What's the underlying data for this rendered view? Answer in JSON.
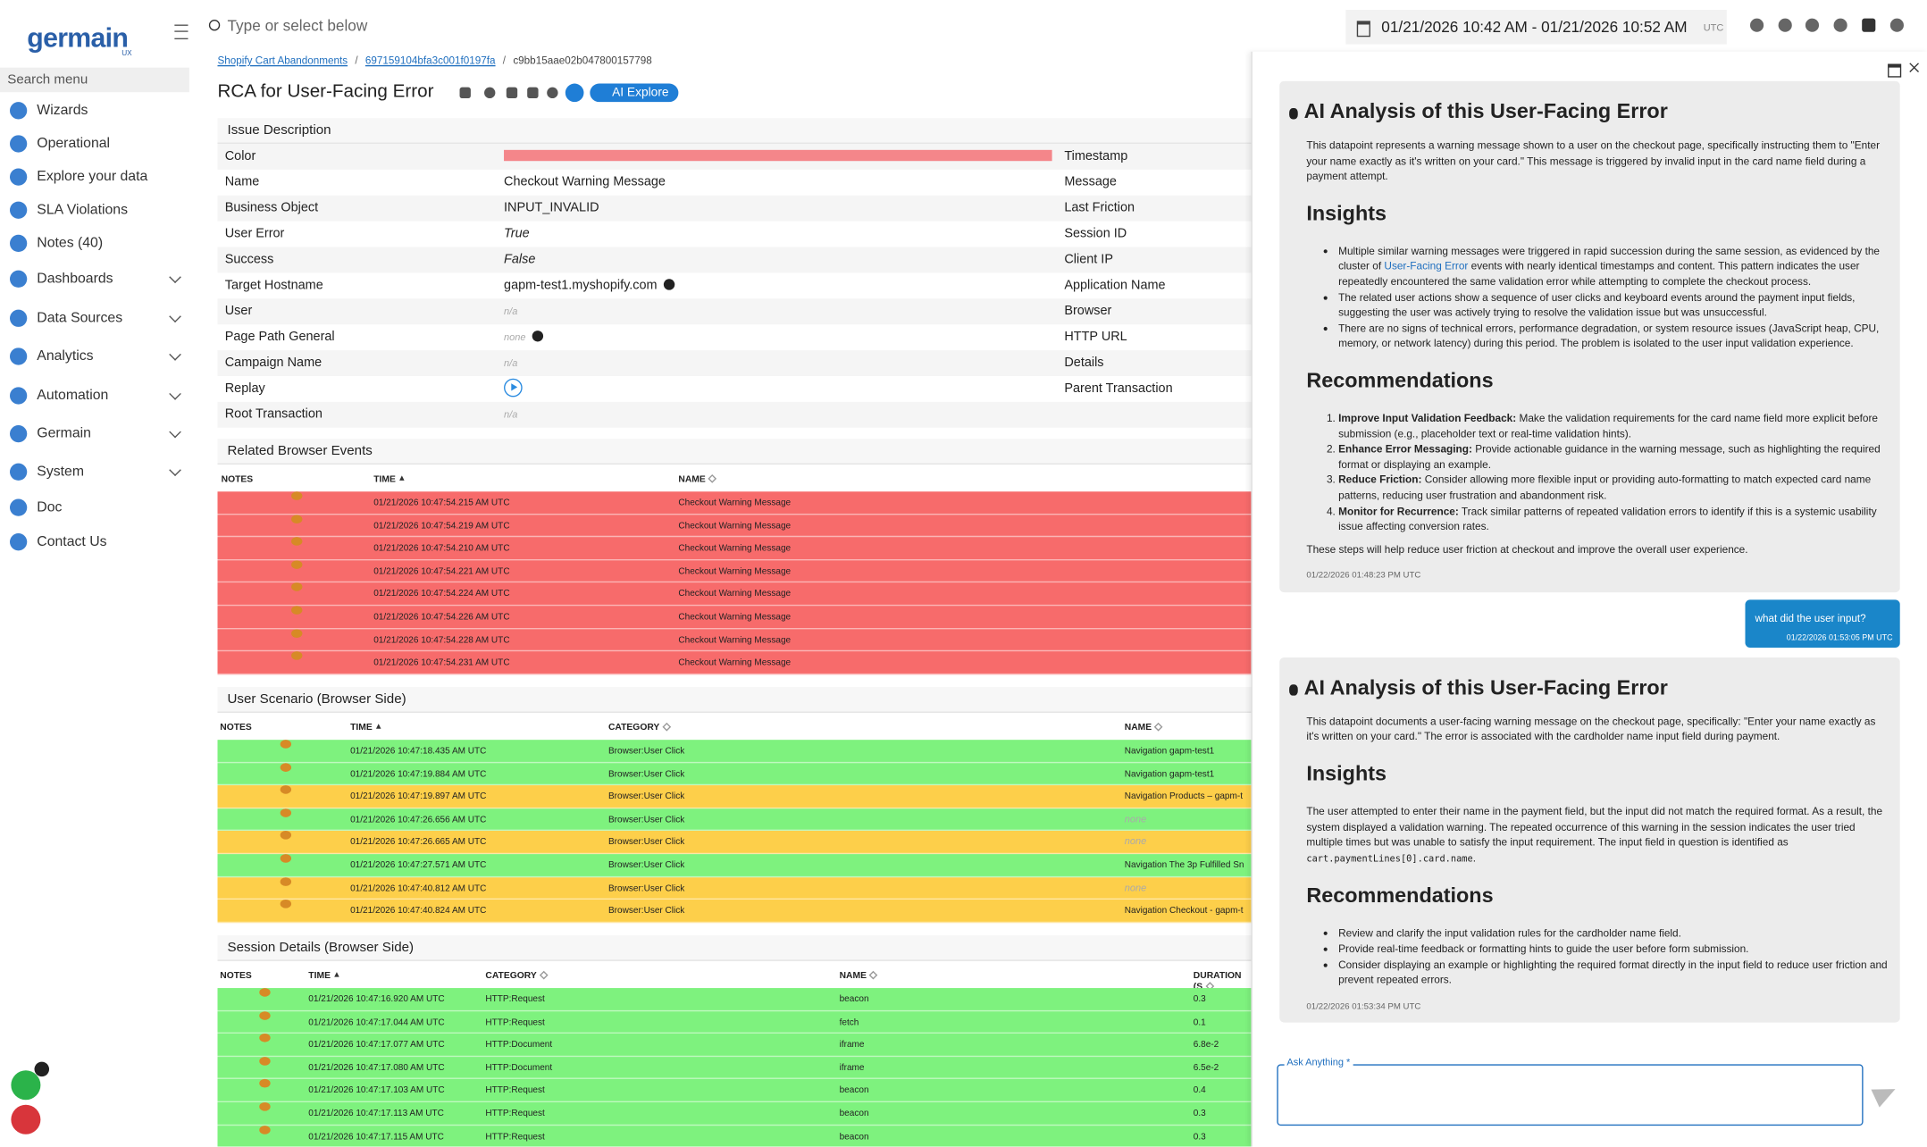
{
  "sidebar": {
    "logo": "germain",
    "logo_sub": "UX",
    "search": "Search menu",
    "items": [
      {
        "label": "Wizards",
        "expandable": false
      },
      {
        "label": "Operational",
        "expandable": false
      },
      {
        "label": "Explore your data",
        "expandable": false
      },
      {
        "label": "SLA Violations",
        "expandable": false
      },
      {
        "label": "Notes (40)",
        "expandable": false
      },
      {
        "label": "Dashboards",
        "expandable": true
      },
      {
        "label": "Data Sources",
        "expandable": true
      },
      {
        "label": "Analytics",
        "expandable": true
      },
      {
        "label": "Automation",
        "expandable": true
      },
      {
        "label": "Germain",
        "expandable": true
      },
      {
        "label": "System",
        "expandable": true
      },
      {
        "label": "Doc",
        "expandable": false
      },
      {
        "label": "Contact Us",
        "expandable": false
      }
    ]
  },
  "topbar": {
    "search_placeholder": "Type or select below",
    "date_range": "01/21/2026 10:42 AM - 01/21/2026 10:52 AM",
    "timezone": "UTC"
  },
  "breadcrumb": {
    "items": [
      "Shopify Cart Abandonments",
      "697159104bfa3c001f0197fa",
      "c9bb15aae02b047800157798"
    ],
    "separator": "/"
  },
  "header": {
    "title": "RCA for User-Facing Error",
    "ai_button": "AI Explore"
  },
  "issue": {
    "title": "Issue Description",
    "left": [
      {
        "label": "Color",
        "color": "#f4868a"
      },
      {
        "label": "Name",
        "value": "Checkout Warning Message"
      },
      {
        "label": "Business Object",
        "value": "INPUT_INVALID"
      },
      {
        "label": "User Error",
        "value": "True",
        "style": "italic"
      },
      {
        "label": "Success",
        "value": "False",
        "style": "italic"
      },
      {
        "label": "Target Hostname",
        "value": "gapm-test1.myshopify.com",
        "info": true
      },
      {
        "label": "User",
        "value": "n/a",
        "style": "muted"
      },
      {
        "label": "Page Path General",
        "value": "none",
        "style": "muted",
        "info": true
      },
      {
        "label": "Campaign Name",
        "value": "n/a",
        "style": "muted"
      },
      {
        "label": "Replay",
        "icon": "play"
      },
      {
        "label": "Root Transaction",
        "value": "n/a",
        "style": "muted"
      }
    ],
    "right": [
      "Timestamp",
      "Message",
      "Last Friction",
      "Session ID",
      "Client IP",
      "Application Name",
      "Browser",
      "HTTP URL",
      "Details",
      "Parent Transaction"
    ]
  },
  "tables": [
    {
      "title": "Related Browser Events",
      "columns": [
        "NOTES",
        "TIME",
        "NAME"
      ],
      "sorted": 1,
      "rows": [
        {
          "color": "#f76b6b",
          "cells": [
            "01/21/2026 10:47:54.215 AM UTC",
            "Checkout Warning Message"
          ]
        },
        {
          "color": "#f76b6b",
          "cells": [
            "01/21/2026 10:47:54.219 AM UTC",
            "Checkout Warning Message"
          ]
        },
        {
          "color": "#f76b6b",
          "cells": [
            "01/21/2026 10:47:54.210 AM UTC",
            "Checkout Warning Message"
          ]
        },
        {
          "color": "#f76b6b",
          "cells": [
            "01/21/2026 10:47:54.221 AM UTC",
            "Checkout Warning Message"
          ]
        },
        {
          "color": "#f76b6b",
          "cells": [
            "01/21/2026 10:47:54.224 AM UTC",
            "Checkout Warning Message"
          ]
        },
        {
          "color": "#f76b6b",
          "cells": [
            "01/21/2026 10:47:54.226 AM UTC",
            "Checkout Warning Message"
          ]
        },
        {
          "color": "#f76b6b",
          "cells": [
            "01/21/2026 10:47:54.228 AM UTC",
            "Checkout Warning Message"
          ]
        },
        {
          "color": "#f76b6b",
          "cells": [
            "01/21/2026 10:47:54.231 AM UTC",
            "Checkout Warning Message"
          ]
        }
      ]
    },
    {
      "title": "User Scenario (Browser Side)",
      "columns": [
        "NOTES",
        "TIME",
        "CATEGORY",
        "NAME"
      ],
      "sorted": 1,
      "rows": [
        {
          "color": "#7ef27e",
          "cells": [
            "01/21/2026 10:47:18.435 AM UTC",
            "Browser:User Click",
            "Navigation gapm-test1"
          ]
        },
        {
          "color": "#7ef27e",
          "cells": [
            "01/21/2026 10:47:19.884 AM UTC",
            "Browser:User Click",
            "Navigation gapm-test1"
          ]
        },
        {
          "color": "#fdcf4a",
          "cells": [
            "01/21/2026 10:47:19.897 AM UTC",
            "Browser:User Click",
            "Navigation Products – gapm-t"
          ]
        },
        {
          "color": "#7ef27e",
          "cells": [
            "01/21/2026 10:47:26.656 AM UTC",
            "Browser:User Click",
            {
              "text": "none",
              "style": "muted"
            }
          ]
        },
        {
          "color": "#fdcf4a",
          "cells": [
            "01/21/2026 10:47:26.665 AM UTC",
            "Browser:User Click",
            {
              "text": "none",
              "style": "muted"
            }
          ]
        },
        {
          "color": "#7ef27e",
          "cells": [
            "01/21/2026 10:47:27.571 AM UTC",
            "Browser:User Click",
            "Navigation The 3p Fulfilled Sn"
          ]
        },
        {
          "color": "#fdcf4a",
          "cells": [
            "01/21/2026 10:47:40.812 AM UTC",
            "Browser:User Click",
            {
              "text": "none",
              "style": "muted"
            }
          ]
        },
        {
          "color": "#fdcf4a",
          "cells": [
            "01/21/2026 10:47:40.824 AM UTC",
            "Browser:User Click",
            "Navigation Checkout - gapm-t"
          ]
        }
      ]
    },
    {
      "title": "Session Details (Browser Side)",
      "columns": [
        "NOTES",
        "TIME",
        "CATEGORY",
        "NAME",
        "DURATION (S"
      ],
      "sorted": 1,
      "rows": [
        {
          "color": "#7ef27e",
          "cells": [
            "01/21/2026 10:47:16.920 AM UTC",
            "HTTP:Request",
            "beacon",
            "0.3"
          ]
        },
        {
          "color": "#7ef27e",
          "cells": [
            "01/21/2026 10:47:17.044 AM UTC",
            "HTTP:Request",
            "fetch",
            "0.1"
          ]
        },
        {
          "color": "#7ef27e",
          "cells": [
            "01/21/2026 10:47:17.077 AM UTC",
            "HTTP:Document",
            "iframe",
            "6.8e-2"
          ]
        },
        {
          "color": "#7ef27e",
          "cells": [
            "01/21/2026 10:47:17.080 AM UTC",
            "HTTP:Document",
            "iframe",
            "6.5e-2"
          ]
        },
        {
          "color": "#7ef27e",
          "cells": [
            "01/21/2026 10:47:17.103 AM UTC",
            "HTTP:Request",
            "beacon",
            "0.4"
          ]
        },
        {
          "color": "#7ef27e",
          "cells": [
            "01/21/2026 10:47:17.113 AM UTC",
            "HTTP:Request",
            "beacon",
            "0.3"
          ]
        },
        {
          "color": "#7ef27e",
          "cells": [
            "01/21/2026 10:47:17.115 AM UTC",
            "HTTP:Request",
            "beacon",
            "0.3"
          ]
        }
      ]
    }
  ],
  "ai_panel": {
    "messages": [
      {
        "role": "assistant",
        "title": "AI Analysis of this User-Facing Error",
        "timestamp": "01/22/2026 01:48:23 PM UTC",
        "blocks": [
          {
            "type": "p",
            "segments": [
              {
                "text": "This datapoint represents a warning message shown to a user on the checkout page, specifically instructing them to \"Enter your name exactly as it's written on your card.\" This message is triggered by invalid input in the card name field during a payment attempt."
              }
            ]
          },
          {
            "type": "h",
            "text": "Insights"
          },
          {
            "type": "ul",
            "items": [
              [
                {
                  "text": "Multiple similar warning messages were triggered in rapid succession during the same session, as evidenced by the cluster of "
                },
                {
                  "text": "User-Facing Error",
                  "style": "link"
                },
                {
                  "text": " events with nearly identical timestamps and content. This pattern indicates the user repeatedly encountered the same validation error while attempting to complete the checkout process."
                }
              ],
              [
                {
                  "text": "The related user actions show a sequence of user clicks and keyboard events around the payment input fields, suggesting the user was actively trying to resolve the validation issue but was unsuccessful."
                }
              ],
              [
                {
                  "text": "There are no signs of technical errors, performance degradation, or system resource issues (JavaScript heap, CPU, memory, or network latency) during this period. The problem is isolated to the user input validation experience."
                }
              ]
            ]
          },
          {
            "type": "h",
            "text": "Recommendations"
          },
          {
            "type": "ol",
            "items": [
              [
                {
                  "text": "Improve Input Validation Feedback:",
                  "style": "bold"
                },
                {
                  "text": " Make the validation requirements for the card name field more explicit before submission (e.g., placeholder text or real-time validation hints)."
                }
              ],
              [
                {
                  "text": "Enhance Error Messaging:",
                  "style": "bold"
                },
                {
                  "text": " Provide actionable guidance in the warning message, such as highlighting the required format or displaying an example."
                }
              ],
              [
                {
                  "text": "Reduce Friction:",
                  "style": "bold"
                },
                {
                  "text": " Consider allowing more flexible input or providing auto-formatting to match expected card name patterns, reducing user frustration and abandonment risk."
                }
              ],
              [
                {
                  "text": "Monitor for Recurrence:",
                  "style": "bold"
                },
                {
                  "text": " Track similar patterns of repeated validation errors to identify if this is a systemic usability issue affecting conversion rates."
                }
              ]
            ]
          },
          {
            "type": "p",
            "segments": [
              {
                "text": "These steps will help reduce user friction at checkout and improve the overall user experience."
              }
            ]
          }
        ]
      },
      {
        "role": "user",
        "text": "what did the user input?",
        "timestamp": "01/22/2026 01:53:05 PM UTC"
      },
      {
        "role": "assistant",
        "title": "AI Analysis of this User-Facing Error",
        "timestamp": "01/22/2026 01:53:34 PM UTC",
        "blocks": [
          {
            "type": "p",
            "segments": [
              {
                "text": "This datapoint documents a user-facing warning message on the checkout page, specifically: \"Enter your name exactly as it's written on your card.\" The error is associated with the cardholder name input field during payment."
              }
            ]
          },
          {
            "type": "h",
            "text": "Insights"
          },
          {
            "type": "p",
            "segments": [
              {
                "text": "The user attempted to enter their name in the payment field, but the input did not match the required format. As a result, the system displayed a validation warning. The repeated occurrence of this warning in the session indicates the user tried multiple times but was unable to satisfy the input requirement. The input field in question is identified as "
              },
              {
                "text": "cart.paymentLines[0].card.name",
                "style": "code"
              },
              {
                "text": "."
              }
            ]
          },
          {
            "type": "h",
            "text": "Recommendations"
          },
          {
            "type": "ul",
            "items": [
              [
                {
                  "text": "Review and clarify the input validation rules for the cardholder name field."
                }
              ],
              [
                {
                  "text": "Provide real-time feedback or formatting hints to guide the user before form submission."
                }
              ],
              [
                {
                  "text": "Consider displaying an example or highlighting the required format directly in the input field to reduce user friction and prevent repeated errors."
                }
              ]
            ]
          }
        ]
      }
    ],
    "input_label": "Ask Anything *"
  }
}
